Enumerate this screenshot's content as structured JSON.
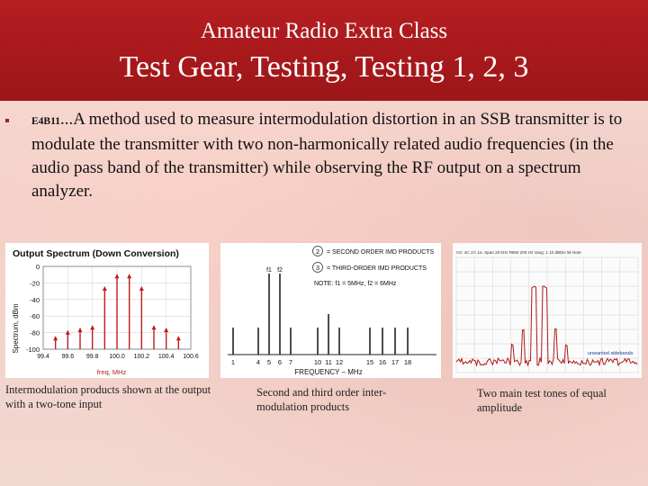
{
  "header": {
    "subtitle": "Amateur Radio Extra Class",
    "title": "Test Gear, Testing, Testing 1, 2, 3"
  },
  "question": {
    "code": "E4B11",
    "text": "...A method used to measure intermodulation distortion in an SSB transmitter is to modulate the transmitter with two non-harmonically related audio frequencies (in the audio pass band of the transmitter) while observing  the RF output on a spectrum analyzer."
  },
  "figures": [
    {
      "caption": "Intermodulation products shown at the output with a two-tone input",
      "title": "Output Spectrum (Down Conversion)",
      "ylabel": "Spectrum, dBm",
      "xlabel": "freq, MHz",
      "y_ticks": [
        "0",
        "-20",
        "-40",
        "-60",
        "-80",
        "-100"
      ],
      "x_ticks": [
        "99.4",
        "99.6",
        "99.8",
        "100.0",
        "100.2",
        "100.4",
        "100.6"
      ]
    },
    {
      "caption": "Second and third order inter-modulation products",
      "legend_2": "= SECOND ORDER IMD PRODUCTS",
      "legend_3": "= THIRD-ORDER IMD PRODUCTS",
      "note": "NOTE: f1 = 5MHz, f2 = 6MHz",
      "xlabel": "FREQUENCY – MHz",
      "x_ticks": [
        "1",
        "4",
        "5",
        "6",
        "7",
        "10",
        "11",
        "12",
        "15",
        "16",
        "17",
        "18"
      ],
      "tone_labels": [
        "f1",
        "f2"
      ]
    },
    {
      "caption": "Two main test tones of equal amplitude",
      "status_line": "Ctr: 4C.1½ 1a. Span 20 kHz RBW 200 Hz Vavg: 1 10 dBDiv 5k Note",
      "annotation": "unwanted sidebands"
    }
  ],
  "chart_data": [
    {
      "type": "bar",
      "title": "Output Spectrum (Down Conversion)",
      "xlabel": "freq, MHz",
      "ylabel": "Spectrum, dBm",
      "ylim": [
        -100,
        0
      ],
      "x": [
        99.5,
        99.6,
        99.7,
        99.8,
        99.9,
        100.0,
        100.1,
        100.2,
        100.3,
        100.4,
        100.5
      ],
      "values": [
        -85,
        -78,
        -75,
        -72,
        -25,
        -10,
        -10,
        -25,
        -72,
        -75,
        -85
      ]
    },
    {
      "type": "bar",
      "xlabel": "FREQUENCY – MHz",
      "x": [
        1,
        4,
        5,
        6,
        7,
        10,
        11,
        12,
        15,
        16,
        17,
        18
      ],
      "values": [
        30,
        30,
        90,
        90,
        30,
        30,
        45,
        30,
        30,
        30,
        30,
        30
      ]
    },
    {
      "type": "line",
      "series": [
        {
          "values": []
        }
      ]
    }
  ]
}
